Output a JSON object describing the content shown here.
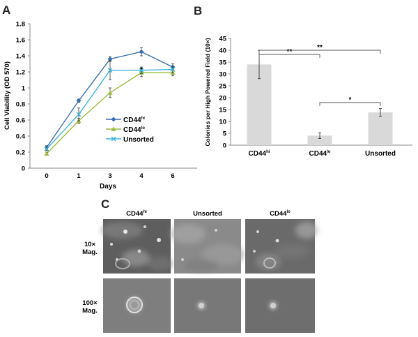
{
  "panels": {
    "a": "A",
    "b": "B",
    "c": "C"
  },
  "chart_data": [
    {
      "type": "line",
      "panel": "A",
      "xlabel": "Days",
      "ylabel": "Cell Viability (OD 570)",
      "categories": [
        "0",
        "1",
        "3",
        "4",
        "6"
      ],
      "ylim": [
        0,
        1.8
      ],
      "yticks": [
        "0",
        "0.2",
        "0.4",
        "0.6",
        "0.8",
        "1",
        "1.2",
        "1.4",
        "1.6",
        "1.8"
      ],
      "grid": false,
      "legend_position": "center-right",
      "series": [
        {
          "name": "CD44",
          "sup": "hi",
          "color": "#3a6fb0",
          "marker": "diamond",
          "values": [
            0.26,
            0.84,
            1.36,
            1.45,
            1.26
          ],
          "errors": [
            0.02,
            0.02,
            0.03,
            0.05,
            0.04
          ]
        },
        {
          "name": "CD44",
          "sup": "lo",
          "color": "#9bbb3c",
          "marker": "triangle",
          "values": [
            0.18,
            0.59,
            0.94,
            1.19,
            1.19
          ],
          "errors": [
            0.02,
            0.03,
            0.06,
            0.05,
            0.04
          ]
        },
        {
          "name": "Unsorted",
          "sup": "",
          "color": "#3fb6d8",
          "marker": "x",
          "values": [
            0.24,
            0.67,
            1.22,
            1.22,
            1.23
          ],
          "errors": [
            0.02,
            0.08,
            0.12,
            0.04,
            0.04
          ]
        }
      ],
      "annotations": [
        {
          "text": "*",
          "category": "4"
        }
      ]
    },
    {
      "type": "bar",
      "panel": "B",
      "ylabel": "Colonies per High Powered Field (10×)",
      "categories": [
        {
          "name": "CD44",
          "sup": "hi"
        },
        {
          "name": "CD44",
          "sup": "lo"
        },
        {
          "name": "Unsorted",
          "sup": ""
        }
      ],
      "values": [
        34,
        4,
        13.8
      ],
      "errors": [
        6,
        1.2,
        1.6
      ],
      "ylim": [
        0,
        45
      ],
      "yticks": [
        "0",
        "5",
        "10",
        "15",
        "20",
        "25",
        "30",
        "35",
        "40",
        "45"
      ],
      "grid": false,
      "bar_color": "#d9d9d9",
      "significance": [
        {
          "from": 0,
          "to": 1,
          "label": "**"
        },
        {
          "from": 0,
          "to": 2,
          "label": "**"
        },
        {
          "from": 1,
          "to": 2,
          "label": "*"
        }
      ]
    }
  ],
  "micrographs": {
    "columns": [
      {
        "name": "CD44",
        "sup": "hi"
      },
      {
        "name": "Unsorted",
        "sup": ""
      },
      {
        "name": "CD44",
        "sup": "lo"
      }
    ],
    "rows": [
      {
        "line1": "10×",
        "line2": "Mag."
      },
      {
        "line1": "100×",
        "line2": "Mag."
      }
    ]
  }
}
